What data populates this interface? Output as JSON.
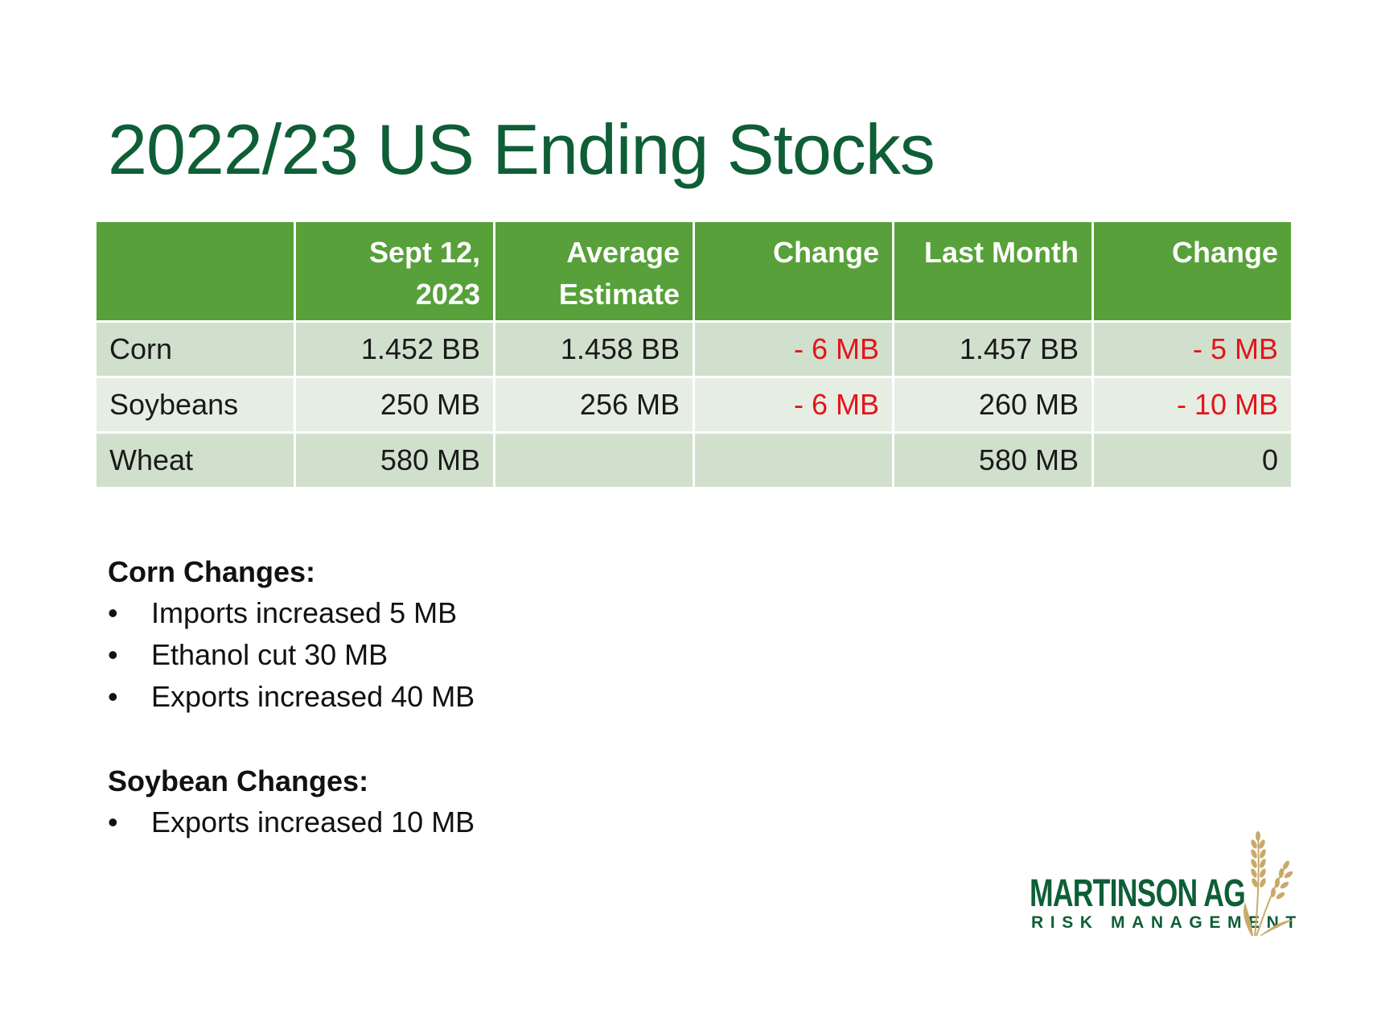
{
  "title": "2022/23 US Ending Stocks",
  "table": {
    "headers": [
      "",
      "Sept 12,\n2023",
      "Average\nEstimate",
      "Change",
      "Last Month",
      "Change"
    ],
    "rows": [
      {
        "crop": "Corn",
        "sept12": "1.452 BB",
        "avg_estimate": "1.458 BB",
        "change_vs_estimate": "- 6 MB",
        "last_month": "1.457 BB",
        "change_vs_last_month": "- 5 MB"
      },
      {
        "crop": "Soybeans",
        "sept12": "250 MB",
        "avg_estimate": "256 MB",
        "change_vs_estimate": "- 6 MB",
        "last_month": "260 MB",
        "change_vs_last_month": "- 10 MB"
      },
      {
        "crop": "Wheat",
        "sept12": "580 MB",
        "avg_estimate": "",
        "change_vs_estimate": "",
        "last_month": "580 MB",
        "change_vs_last_month": "0"
      }
    ]
  },
  "notes": {
    "corn": {
      "heading": "Corn Changes:",
      "items": [
        "Imports increased 5 MB",
        "Ethanol cut 30 MB",
        "Exports increased 40 MB"
      ]
    },
    "soybean": {
      "heading": "Soybean Changes:",
      "items": [
        "Exports increased 10 MB"
      ]
    }
  },
  "logo": {
    "name": "MARTINSON AG",
    "tagline": "RISK MANAGEMENT",
    "icon": "wheat-icon"
  },
  "colors": {
    "title": "#0e5e36",
    "header_bg": "#57a03a",
    "row_dark": "#d1e0cd",
    "row_light": "#e6eee3",
    "negative": "#e3141a",
    "logo_green": "#0e5e36",
    "wheat_gold": "#c9a96a"
  }
}
